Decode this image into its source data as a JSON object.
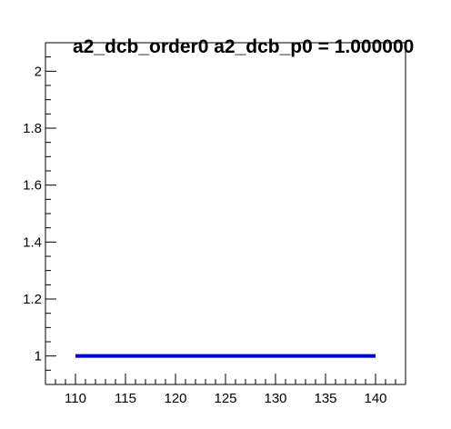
{
  "chart_data": {
    "type": "line",
    "title": "a2_dcb_order0  a2_dcb_p0 = 1.000000",
    "xlabel": "",
    "ylabel": "",
    "xlim": [
      107,
      143
    ],
    "ylim": [
      0.9,
      2.1
    ],
    "x_ticks": [
      110,
      115,
      120,
      125,
      130,
      135,
      140
    ],
    "x_tick_labels": [
      "110",
      "115",
      "120",
      "125",
      "130",
      "135",
      "140"
    ],
    "y_ticks": [
      1,
      1.2,
      1.4,
      1.6,
      1.8,
      2
    ],
    "y_tick_labels": [
      "1",
      "1.2",
      "1.4",
      "1.6",
      "1.8",
      "2"
    ],
    "grid": false,
    "series": [
      {
        "color": "#0000cc",
        "x": [
          110,
          140
        ],
        "y": [
          1.0,
          1.0
        ]
      }
    ]
  }
}
